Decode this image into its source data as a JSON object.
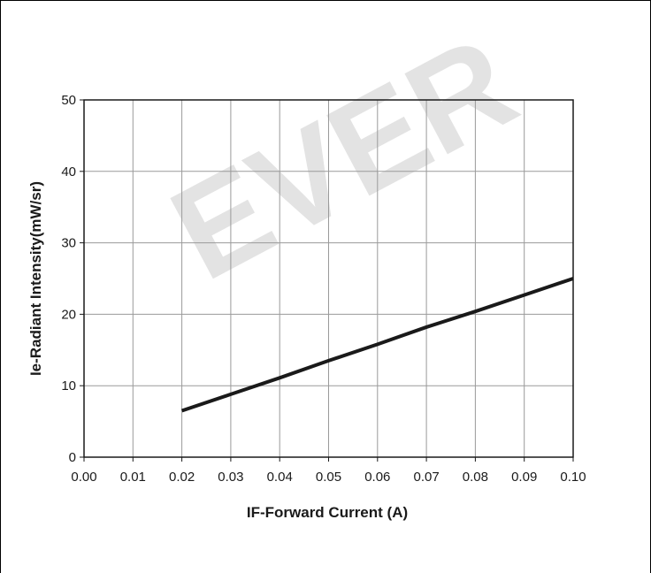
{
  "watermark": "EVER",
  "chart_data": {
    "type": "line",
    "title": "",
    "xlabel": "IF-Forward Current (A)",
    "ylabel": "Ie-Radiant Intensity(mW/sr)",
    "xlim": [
      0.0,
      0.1
    ],
    "ylim": [
      0,
      50
    ],
    "x_ticks": [
      0.0,
      0.01,
      0.02,
      0.03,
      0.04,
      0.05,
      0.06,
      0.07,
      0.08,
      0.09,
      0.1
    ],
    "x_tick_labels": [
      "0.00",
      "0.01",
      "0.02",
      "0.03",
      "0.04",
      "0.05",
      "0.06",
      "0.07",
      "0.08",
      "0.09",
      "0.10"
    ],
    "y_ticks": [
      0,
      10,
      20,
      30,
      40,
      50
    ],
    "y_tick_labels": [
      "0",
      "10",
      "20",
      "30",
      "40",
      "50"
    ],
    "grid": true,
    "series": [
      {
        "x": [
          0.02,
          0.03,
          0.04,
          0.05,
          0.06,
          0.07,
          0.08,
          0.09,
          0.1
        ],
        "y": [
          6.5,
          8.8,
          11.1,
          13.5,
          15.8,
          18.2,
          20.4,
          22.7,
          25.0
        ],
        "color": "#1a1a1a"
      }
    ]
  }
}
